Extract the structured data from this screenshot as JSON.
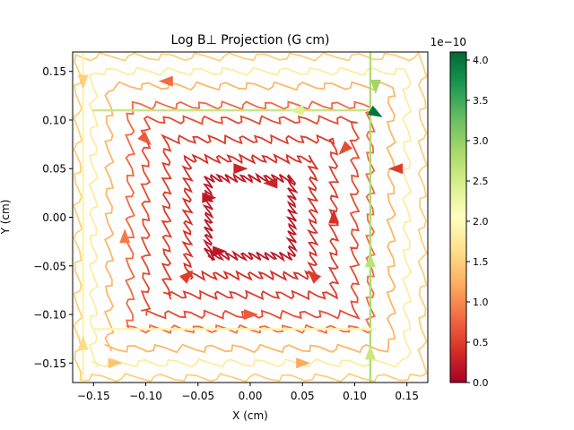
{
  "chart_data": {
    "type": "streamplot",
    "title": "Log  B⊥ Projection (G cm)",
    "xlabel": "X (cm)",
    "ylabel": "Y (cm)",
    "xlim": [
      -0.17,
      0.17
    ],
    "ylim": [
      -0.17,
      0.17
    ],
    "xticks": [
      -0.15,
      -0.1,
      -0.05,
      0.0,
      0.05,
      0.1,
      0.15
    ],
    "xtick_labels": [
      "−0.15",
      "−0.10",
      "−0.05",
      "0.00",
      "0.05",
      "0.10",
      "0.15"
    ],
    "yticks": [
      -0.15,
      -0.1,
      -0.05,
      0.0,
      0.05,
      0.1,
      0.15
    ],
    "ytick_labels": [
      "−0.15",
      "−0.10",
      "−0.05",
      "0.00",
      "0.05",
      "0.10",
      "0.15"
    ],
    "grid": false,
    "colorbar": {
      "multiplier_label": "1e−10",
      "range": [
        0.0,
        4.1
      ],
      "ticks": [
        0.0,
        0.5,
        1.0,
        1.5,
        2.0,
        2.5,
        3.0,
        3.5,
        4.0
      ],
      "tick_labels": [
        "0.0",
        "0.5",
        "1.0",
        "1.5",
        "2.0",
        "2.5",
        "3.0",
        "3.5",
        "4.0"
      ],
      "colormap": "RdYlGn"
    },
    "field_lines": [
      {
        "center": [
          0.0,
          0.0
        ],
        "half_width": 0.04,
        "magnitude": 0.2
      },
      {
        "center": [
          0.0,
          0.0
        ],
        "half_width": 0.06,
        "magnitude": 0.4
      },
      {
        "center": [
          0.0,
          0.0
        ],
        "half_width": 0.08,
        "magnitude": 0.5
      },
      {
        "center": [
          0.0,
          0.0
        ],
        "half_width": 0.1,
        "magnitude": 0.6
      },
      {
        "center": [
          0.0,
          0.0
        ],
        "half_width": 0.115,
        "magnitude": 0.8
      },
      {
        "center": [
          0.0,
          0.0
        ],
        "half_width": 0.135,
        "magnitude": 1.3
      },
      {
        "center": [
          0.0,
          0.0
        ],
        "half_width": 0.15,
        "magnitude": 1.8
      },
      {
        "center": [
          0.0,
          0.0
        ],
        "half_width": 0.165,
        "magnitude": 1.5
      }
    ],
    "bright_lines": [
      {
        "orientation": "vertical",
        "x": 0.115,
        "y_range": [
          -0.17,
          0.17
        ],
        "magnitude": 2.8
      },
      {
        "orientation": "horizontal",
        "y": 0.11,
        "x_range": [
          -0.15,
          0.12
        ],
        "magnitude": 2.6
      },
      {
        "orientation": "horizontal",
        "y": -0.115,
        "x_range": [
          -0.15,
          0.12
        ],
        "magnitude": 1.9
      },
      {
        "orientation": "vertical",
        "x": -0.16,
        "y_range": [
          -0.17,
          0.17
        ],
        "magnitude": 1.9
      }
    ],
    "arrows": [
      {
        "x": 0.12,
        "y": 0.107,
        "angle": -30,
        "magnitude": 4.0
      },
      {
        "x": 0.12,
        "y": 0.135,
        "angle": -90,
        "magnitude": 2.9
      },
      {
        "x": 0.115,
        "y": -0.045,
        "angle": 90,
        "magnitude": 2.7
      },
      {
        "x": 0.115,
        "y": -0.14,
        "angle": 90,
        "magnitude": 2.6
      },
      {
        "x": 0.045,
        "y": 0.11,
        "angle": 180,
        "magnitude": 2.4
      },
      {
        "x": -0.16,
        "y": -0.13,
        "angle": 90,
        "magnitude": 1.6
      },
      {
        "x": -0.16,
        "y": 0.14,
        "angle": -90,
        "magnitude": 1.5
      },
      {
        "x": -0.01,
        "y": 0.05,
        "angle": 0,
        "magnitude": 0.3
      },
      {
        "x": -0.03,
        "y": -0.035,
        "angle": 0,
        "magnitude": 0.2
      },
      {
        "x": 0.02,
        "y": 0.035,
        "angle": 180,
        "magnitude": 0.3
      },
      {
        "x": -0.04,
        "y": 0.02,
        "angle": 0,
        "magnitude": 0.2
      },
      {
        "x": 0.08,
        "y": 0.0,
        "angle": 90,
        "magnitude": 0.4
      },
      {
        "x": -0.06,
        "y": -0.06,
        "angle": 45,
        "magnitude": 0.5
      },
      {
        "x": 0.06,
        "y": -0.06,
        "angle": 135,
        "magnitude": 0.5
      },
      {
        "x": -0.1,
        "y": 0.08,
        "angle": -45,
        "magnitude": 0.7
      },
      {
        "x": 0.09,
        "y": 0.07,
        "angle": -135,
        "magnitude": 0.6
      },
      {
        "x": -0.12,
        "y": -0.02,
        "angle": 90,
        "magnitude": 0.9
      },
      {
        "x": 0.0,
        "y": -0.1,
        "angle": 0,
        "magnitude": 0.7
      },
      {
        "x": 0.14,
        "y": 0.05,
        "angle": 180,
        "magnitude": 0.5
      },
      {
        "x": -0.08,
        "y": 0.14,
        "angle": 180,
        "magnitude": 0.8
      },
      {
        "x": 0.05,
        "y": -0.15,
        "angle": 0,
        "magnitude": 1.2
      },
      {
        "x": -0.13,
        "y": -0.15,
        "angle": 0,
        "magnitude": 1.4
      }
    ]
  }
}
